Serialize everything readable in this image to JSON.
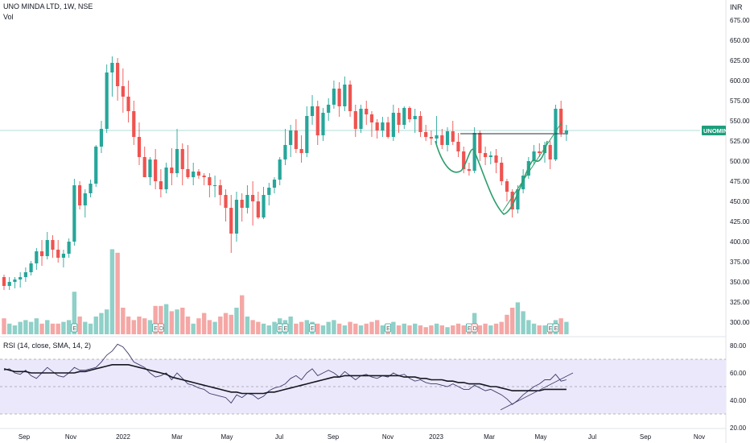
{
  "header": {
    "symbol_line": "UNO MINDA LTD, 1W, NSE",
    "vol_label": "Vol",
    "rsi_label": "RSI (14, close, SMA, 14, 2)",
    "currency": "INR"
  },
  "colors": {
    "up": "#26a69a",
    "down": "#ef5350",
    "up_vol": "#8fd0c8",
    "down_vol": "#f4a7a5",
    "rsi_line": "#3c3c6a",
    "rsi_sma": "#131722",
    "rsi_band": "#ece8fb",
    "pattern": "#2e9e6e",
    "ticker_tag": "#1f9e7c"
  },
  "chart_data": [
    {
      "type": "candlestick",
      "title": "UNO MINDA LTD, 1W, NSE",
      "ticker_label": "UNOMINDA",
      "ylim": [
        285,
        690
      ],
      "y_ticks": [
        "675.00",
        "650.00",
        "625.00",
        "600.00",
        "575.00",
        "550.00",
        "525.00",
        "500.00",
        "475.00",
        "450.00",
        "425.00",
        "400.00",
        "375.00",
        "350.00",
        "325.00",
        "300.00"
      ],
      "x_ticks": [
        "Sep",
        "Nov",
        "2022",
        "Mar",
        "May",
        "Jul",
        "Sep",
        "Nov",
        "2023",
        "Mar",
        "May",
        "Jul",
        "Sep",
        "Nov"
      ],
      "annotations": [
        "cup and handle curve",
        "horizontal resistance near 535",
        "rising trendline"
      ],
      "candles": [
        [
          356,
          359,
          340,
          345
        ],
        [
          345,
          356,
          340,
          350
        ],
        [
          350,
          356,
          342,
          353
        ],
        [
          353,
          362,
          343,
          356
        ],
        [
          356,
          368,
          350,
          362
        ],
        [
          362,
          376,
          358,
          373
        ],
        [
          373,
          392,
          365,
          388
        ],
        [
          388,
          402,
          370,
          382
        ],
        [
          382,
          412,
          378,
          402
        ],
        [
          402,
          408,
          380,
          390
        ],
        [
          390,
          402,
          374,
          380
        ],
        [
          380,
          390,
          368,
          385
        ],
        [
          385,
          404,
          380,
          400
        ],
        [
          400,
          478,
          395,
          470
        ],
        [
          470,
          475,
          440,
          445
        ],
        [
          445,
          465,
          430,
          460
        ],
        [
          460,
          477,
          455,
          472
        ],
        [
          472,
          520,
          468,
          518
        ],
        [
          518,
          550,
          510,
          540
        ],
        [
          540,
          620,
          535,
          610
        ],
        [
          610,
          630,
          580,
          622
        ],
        [
          622,
          628,
          575,
          593
        ],
        [
          593,
          615,
          560,
          580
        ],
        [
          580,
          600,
          548,
          562
        ],
        [
          562,
          575,
          520,
          530
        ],
        [
          530,
          548,
          495,
          505
        ],
        [
          505,
          518,
          480,
          480
        ],
        [
          480,
          505,
          470,
          502
        ],
        [
          502,
          515,
          465,
          475
        ],
        [
          475,
          490,
          455,
          465
        ],
        [
          465,
          498,
          460,
          492
        ],
        [
          492,
          516,
          470,
          485
        ],
        [
          485,
          540,
          480,
          515
        ],
        [
          515,
          522,
          470,
          490
        ],
        [
          490,
          520,
          478,
          480
        ],
        [
          480,
          498,
          470,
          487
        ],
        [
          487,
          490,
          478,
          482
        ],
        [
          482,
          485,
          470,
          480
        ],
        [
          480,
          485,
          455,
          470
        ],
        [
          470,
          482,
          455,
          470
        ],
        [
          470,
          477,
          445,
          458
        ],
        [
          458,
          465,
          425,
          442
        ],
        [
          442,
          458,
          386,
          410
        ],
        [
          410,
          462,
          400,
          452
        ],
        [
          452,
          460,
          425,
          442
        ],
        [
          442,
          470,
          435,
          458
        ],
        [
          458,
          475,
          420,
          450
        ],
        [
          450,
          462,
          428,
          430
        ],
        [
          430,
          468,
          428,
          458
        ],
        [
          458,
          473,
          445,
          467
        ],
        [
          467,
          480,
          460,
          477
        ],
        [
          477,
          505,
          470,
          502
        ],
        [
          502,
          540,
          495,
          520
        ],
        [
          520,
          545,
          505,
          538
        ],
        [
          538,
          552,
          510,
          515
        ],
        [
          515,
          532,
          498,
          510
        ],
        [
          510,
          568,
          505,
          556
        ],
        [
          556,
          582,
          545,
          568
        ],
        [
          568,
          575,
          520,
          532
        ],
        [
          532,
          566,
          525,
          560
        ],
        [
          560,
          578,
          550,
          570
        ],
        [
          570,
          600,
          565,
          590
        ],
        [
          590,
          598,
          555,
          568
        ],
        [
          568,
          605,
          562,
          595
        ],
        [
          595,
          600,
          555,
          562
        ],
        [
          562,
          570,
          530,
          540
        ],
        [
          540,
          570,
          535,
          565
        ],
        [
          565,
          575,
          545,
          558
        ],
        [
          558,
          562,
          530,
          548
        ],
        [
          548,
          552,
          528,
          538
        ],
        [
          538,
          555,
          530,
          548
        ],
        [
          548,
          555,
          528,
          530
        ],
        [
          530,
          570,
          525,
          560
        ],
        [
          560,
          566,
          535,
          545
        ],
        [
          545,
          568,
          540,
          566
        ],
        [
          566,
          568,
          548,
          552
        ],
        [
          552,
          565,
          535,
          556
        ],
        [
          556,
          562,
          530,
          536
        ],
        [
          536,
          545,
          525,
          530
        ],
        [
          530,
          538,
          520,
          528
        ],
        [
          528,
          556,
          522,
          532
        ],
        [
          532,
          540,
          515,
          520
        ],
        [
          520,
          542,
          512,
          537
        ],
        [
          537,
          550,
          520,
          524
        ],
        [
          524,
          535,
          505,
          512
        ],
        [
          512,
          518,
          485,
          490
        ],
        [
          490,
          498,
          482,
          488
        ],
        [
          488,
          542,
          485,
          535
        ],
        [
          535,
          538,
          500,
          510
        ],
        [
          510,
          518,
          495,
          505
        ],
        [
          505,
          512,
          496,
          507
        ],
        [
          507,
          515,
          485,
          498
        ],
        [
          498,
          505,
          470,
          475
        ],
        [
          475,
          478,
          450,
          462
        ],
        [
          462,
          465,
          430,
          440
        ],
        [
          440,
          470,
          435,
          465
        ],
        [
          465,
          490,
          460,
          482
        ],
        [
          482,
          505,
          478,
          500
        ],
        [
          500,
          520,
          495,
          512
        ],
        [
          512,
          522,
          505,
          510
        ],
        [
          510,
          524,
          498,
          520
        ],
        [
          520,
          525,
          490,
          502
        ],
        [
          502,
          570,
          500,
          565
        ],
        [
          565,
          575,
          530,
          535
        ],
        [
          535,
          545,
          525,
          538
        ]
      ],
      "volume_relative": [
        0.09,
        0.06,
        0.05,
        0.07,
        0.08,
        0.07,
        0.09,
        0.06,
        0.08,
        0.06,
        0.06,
        0.07,
        0.08,
        0.24,
        0.1,
        0.07,
        0.06,
        0.1,
        0.12,
        0.14,
        0.48,
        0.46,
        0.15,
        0.1,
        0.08,
        0.1,
        0.09,
        0.08,
        0.16,
        0.16,
        0.17,
        0.13,
        0.14,
        0.15,
        0.1,
        0.06,
        0.09,
        0.12,
        0.08,
        0.07,
        0.1,
        0.12,
        0.11,
        0.15,
        0.22,
        0.1,
        0.08,
        0.07,
        0.06,
        0.05,
        0.07,
        0.09,
        0.08,
        0.1,
        0.06,
        0.07,
        0.08,
        0.07,
        0.06,
        0.05,
        0.07,
        0.08,
        0.06,
        0.05,
        0.07,
        0.06,
        0.05,
        0.06,
        0.07,
        0.08,
        0.05,
        0.06,
        0.07,
        0.05,
        0.06,
        0.05,
        0.06,
        0.05,
        0.04,
        0.05,
        0.06,
        0.05,
        0.04,
        0.05,
        0.06,
        0.05,
        0.04,
        0.12,
        0.05,
        0.06,
        0.05,
        0.06,
        0.07,
        0.11,
        0.15,
        0.18,
        0.13,
        0.08,
        0.06,
        0.05,
        0.05,
        0.06,
        0.08,
        0.09,
        0.07
      ]
    },
    {
      "type": "line",
      "title": "RSI (14, close, SMA, 14, 2)",
      "ylim": [
        30,
        85
      ],
      "y_ticks": [
        "80.00",
        "60.00",
        "40.00",
        "20.00"
      ],
      "bands": [
        30,
        70
      ],
      "series": [
        {
          "name": "RSI",
          "values": [
            62,
            63,
            60,
            59,
            62,
            58,
            56,
            60,
            64,
            61,
            58,
            57,
            60,
            64,
            62,
            62,
            63,
            64,
            68,
            73,
            76,
            81,
            79,
            74,
            68,
            66,
            64,
            60,
            57,
            58,
            60,
            55,
            60,
            56,
            52,
            51,
            49,
            48,
            45,
            44,
            43,
            42,
            38,
            44,
            42,
            45,
            44,
            41,
            43,
            47,
            49,
            50,
            52,
            56,
            58,
            55,
            60,
            63,
            58,
            60,
            62,
            60,
            57,
            61,
            58,
            55,
            58,
            59,
            57,
            56,
            58,
            57,
            60,
            58,
            59,
            56,
            54,
            55,
            53,
            52,
            52,
            51,
            50,
            52,
            50,
            48,
            48,
            51,
            49,
            47,
            48,
            46,
            44,
            41,
            37,
            40,
            44,
            47,
            50,
            52,
            55,
            55,
            59,
            54,
            55
          ]
        },
        {
          "name": "RSI SMA",
          "values": [
            63,
            62,
            61,
            61,
            61,
            60,
            60,
            60,
            60,
            60,
            60,
            60,
            60,
            60,
            61,
            61,
            62,
            63,
            64,
            65,
            66,
            66,
            66,
            66,
            65,
            64,
            63,
            62,
            61,
            60,
            59,
            57,
            56,
            55,
            54,
            53,
            52,
            51,
            50,
            49,
            48,
            47,
            46,
            46,
            45,
            45,
            45,
            45,
            45,
            46,
            46,
            47,
            48,
            49,
            50,
            51,
            52,
            53,
            54,
            55,
            56,
            57,
            57,
            58,
            58,
            58,
            58,
            58,
            58,
            58,
            58,
            58,
            58,
            58,
            57,
            57,
            57,
            56,
            56,
            55,
            55,
            55,
            54,
            54,
            53,
            53,
            52,
            52,
            52,
            51,
            50,
            50,
            49,
            48,
            47,
            47,
            47,
            47,
            47,
            47,
            48,
            48,
            48,
            48,
            48
          ]
        }
      ]
    }
  ]
}
